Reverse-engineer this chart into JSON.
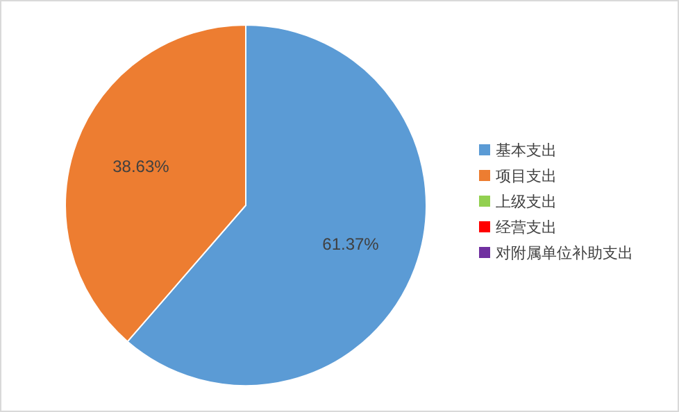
{
  "chart_data": {
    "type": "pie",
    "categories": [
      "基本支出",
      "项目支出",
      "上级支出",
      "经营支出",
      "对附属单位补助支出"
    ],
    "values": [
      61.37,
      38.63,
      0,
      0,
      0
    ],
    "value_labels": [
      "61.37%",
      "38.63%",
      null,
      null,
      null
    ],
    "colors": [
      "#5b9bd5",
      "#ed7d31",
      "#92d050",
      "#ff0000",
      "#7030a0"
    ],
    "legend": "right"
  }
}
